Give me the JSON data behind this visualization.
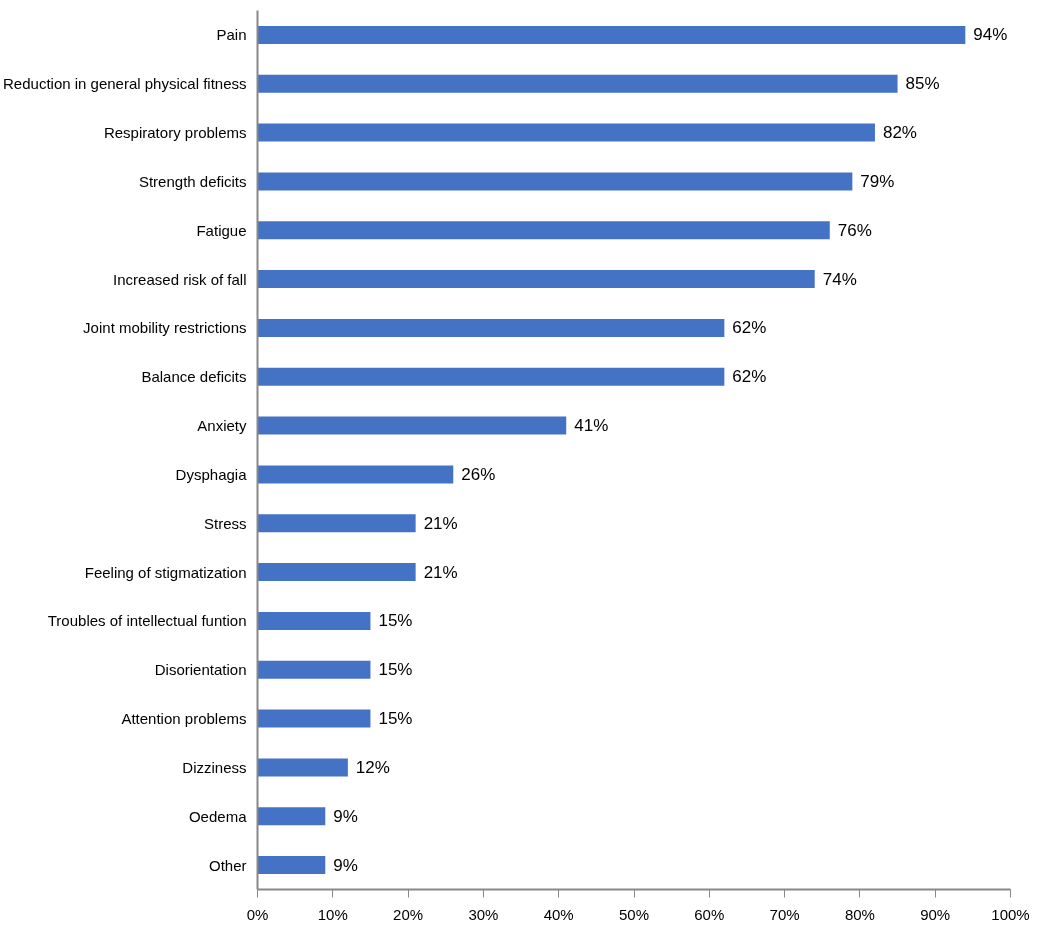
{
  "chart_data": {
    "type": "bar",
    "orientation": "horizontal",
    "categories": [
      "Pain",
      "Reduction in general physical fitness",
      "Respiratory problems",
      "Strength deficits",
      "Fatigue",
      "Increased risk of fall",
      "Joint mobility restrictions",
      "Balance deficits",
      "Anxiety",
      "Dysphagia",
      "Stress",
      "Feeling of stigmatization",
      "Troubles of intellectual funtion",
      "Disorientation",
      "Attention problems",
      "Dizziness",
      "Oedema",
      "Other"
    ],
    "values": [
      94,
      85,
      82,
      79,
      76,
      74,
      62,
      62,
      41,
      26,
      21,
      21,
      15,
      15,
      15,
      12,
      9,
      9
    ],
    "value_labels": [
      "94%",
      "85%",
      "82%",
      "79%",
      "76%",
      "74%",
      "62%",
      "62%",
      "41%",
      "26%",
      "21%",
      "21%",
      "15%",
      "15%",
      "15%",
      "12%",
      "9%",
      "9%"
    ],
    "color": "#4472c4",
    "xlim": [
      0,
      100
    ],
    "xticks": [
      {
        "value": 0,
        "label": "0%"
      },
      {
        "value": 10,
        "label": "10%"
      },
      {
        "value": 20,
        "label": "20%"
      },
      {
        "value": 30,
        "label": "30%"
      },
      {
        "value": 40,
        "label": "40%"
      },
      {
        "value": 50,
        "label": "50%"
      },
      {
        "value": 60,
        "label": "60%"
      },
      {
        "value": 70,
        "label": "70%"
      },
      {
        "value": 80,
        "label": "80%"
      },
      {
        "value": 90,
        "label": "90%"
      },
      {
        "value": 100,
        "label": "100%"
      }
    ],
    "grid": false
  }
}
